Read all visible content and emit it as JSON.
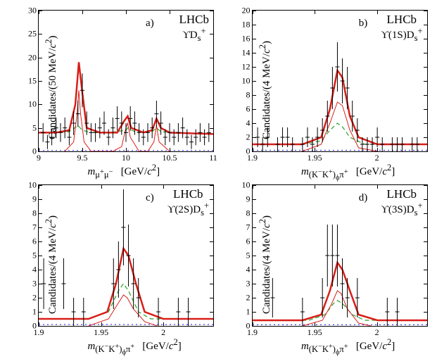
{
  "global": {
    "colors": {
      "axis": "#000000",
      "data_marker": "#000000",
      "fit_total": "#d91e18",
      "fit_signal": "#d91e18",
      "fit_combinatorial": "#2aa12a",
      "fit_combinatorial_dash": "6,4",
      "fit_bkg2": "#4040ff",
      "fit_bkg2_dash": "2,4"
    },
    "marker_size": 3,
    "marker_style": "cross",
    "fit_total_width": 2.5,
    "fit_signal_width": 1,
    "fit_dash_width": 1.2
  },
  "panels": {
    "a": {
      "tag": "a)",
      "experiment": "LHCb",
      "channel_html": "ϒD<sub>s</sub><sup>+</sup>",
      "xlabel_html": "<i>m</i><sub>μ<sup>+</sup>μ<sup>−</sup></sub> &nbsp; [GeV/<i>c</i><sup>2</sup>]",
      "ylabel_html": "Candidates/(50 MeV/<i>c</i><sup>2</sup>)",
      "xlim": [
        9,
        11
      ],
      "ylim": [
        0,
        30
      ],
      "xticks": [
        9,
        9.5,
        10,
        10.5,
        11
      ],
      "yticks": [
        0,
        5,
        10,
        15,
        20,
        25,
        30
      ],
      "data": {
        "x": [
          9.05,
          9.1,
          9.15,
          9.2,
          9.25,
          9.3,
          9.35,
          9.4,
          9.45,
          9.5,
          9.55,
          9.6,
          9.65,
          9.7,
          9.75,
          9.8,
          9.85,
          9.9,
          9.95,
          10.0,
          10.05,
          10.1,
          10.15,
          10.2,
          10.25,
          10.3,
          10.35,
          10.4,
          10.45,
          10.5,
          10.55,
          10.6,
          10.65,
          10.7,
          10.75,
          10.8,
          10.85,
          10.9,
          10.95
        ],
        "y": [
          4,
          2,
          3,
          5,
          4,
          5,
          3,
          6,
          8,
          13,
          6,
          4,
          4,
          5,
          6,
          3,
          5,
          7,
          6,
          4,
          7,
          6,
          4,
          3,
          4,
          5,
          8,
          6,
          3,
          4,
          3,
          4,
          5,
          3,
          2,
          3,
          4,
          3,
          4
        ],
        "ey": [
          2,
          1.5,
          1.7,
          2.2,
          2,
          2.2,
          1.7,
          2.5,
          2.8,
          3.6,
          2.5,
          2,
          2,
          2.2,
          2.5,
          1.7,
          2.2,
          2.6,
          2.5,
          2,
          2.6,
          2.5,
          2,
          1.7,
          2,
          2.2,
          2.8,
          2.5,
          1.7,
          2,
          1.7,
          2,
          2.2,
          1.7,
          1.5,
          1.7,
          2,
          1.7,
          2
        ]
      },
      "fit_total": {
        "x": [
          9,
          9.2,
          9.35,
          9.42,
          9.46,
          9.5,
          9.55,
          9.7,
          9.9,
          9.98,
          10.02,
          10.06,
          10.2,
          10.3,
          10.35,
          10.4,
          10.5,
          10.8,
          11
        ],
        "y": [
          4,
          4,
          4.5,
          10,
          19,
          12.5,
          5,
          4,
          4,
          6.5,
          7.5,
          5,
          4,
          4.5,
          7,
          5,
          4,
          3.8,
          3.7
        ]
      },
      "fit_signal": {
        "x": [
          9.3,
          9.4,
          9.44,
          9.46,
          9.48,
          9.52,
          9.6,
          9.85,
          9.95,
          10.0,
          10.02,
          10.05,
          10.15,
          10.25,
          10.32,
          10.35,
          10.38,
          10.5
        ],
        "y": [
          0,
          2,
          8,
          13,
          8,
          2,
          0,
          0,
          1,
          5,
          6,
          3,
          0,
          0,
          2,
          5.5,
          2,
          0
        ]
      },
      "fit_comb": {
        "x": [
          9,
          9.2,
          9.35,
          9.45,
          9.5,
          9.6,
          9.8,
          10,
          10.02,
          10.1,
          10.3,
          10.35,
          10.4,
          10.6,
          11
        ],
        "y": [
          4,
          4,
          4.2,
          5.5,
          4.5,
          4,
          4,
          4.5,
          5,
          4.2,
          4.2,
          5,
          4.2,
          3.9,
          3.7
        ]
      },
      "fit_bkg2": {
        "x": [
          9,
          11
        ],
        "y": [
          0.2,
          0.2
        ]
      }
    },
    "b": {
      "tag": "b)",
      "experiment": "LHCb",
      "channel_html": "ϒ(1S)D<sub>s</sub><sup>+</sup>",
      "xlabel_html": "<i>m</i><sub>(K<sup>−</sup>K<sup>+</sup>)<sub>ϕ</sub>π<sup>+</sup></sub> &nbsp; [GeV/<i>c</i><sup>2</sup>]",
      "ylabel_html": "Candidates/(4 MeV/<i>c</i><sup>2</sup>)",
      "xlim": [
        1.9,
        2.04
      ],
      "ylim": [
        0,
        20
      ],
      "xticks": [
        1.9,
        1.95,
        2
      ],
      "yticks": [
        0,
        2,
        4,
        6,
        8,
        10,
        12,
        14,
        16,
        18,
        20
      ],
      "data": {
        "x": [
          1.904,
          1.908,
          1.912,
          1.916,
          1.92,
          1.924,
          1.928,
          1.932,
          1.936,
          1.94,
          1.944,
          1.948,
          1.952,
          1.956,
          1.96,
          1.964,
          1.968,
          1.972,
          1.976,
          1.98,
          1.984,
          1.988,
          1.992,
          1.996,
          2.0,
          2.004,
          2.008,
          2.012,
          2.016,
          2.02,
          2.024,
          2.028,
          2.032
        ],
        "y": [
          2,
          1,
          2,
          0,
          1,
          2,
          2,
          1,
          0,
          1,
          2,
          1,
          2,
          3,
          5,
          9,
          12,
          10,
          9,
          5,
          3,
          1,
          1,
          1,
          2,
          1,
          0,
          1,
          1,
          1,
          0,
          1,
          1
        ],
        "ey": [
          1.4,
          1,
          1.4,
          0,
          1,
          1.4,
          1.4,
          1,
          0,
          1,
          1.4,
          1,
          1.4,
          1.7,
          2.2,
          3,
          3.5,
          3.2,
          3,
          2.2,
          1.7,
          1,
          1,
          1,
          1.4,
          1,
          0,
          1,
          1,
          1,
          0,
          1,
          1
        ]
      },
      "fit_total": {
        "x": [
          1.9,
          1.94,
          1.955,
          1.962,
          1.968,
          1.972,
          1.978,
          1.985,
          2.0,
          2.04
        ],
        "y": [
          1,
          1,
          2,
          6,
          11.5,
          10.5,
          5,
          2,
          1,
          1
        ]
      },
      "fit_signal": {
        "x": [
          1.94,
          1.955,
          1.962,
          1.968,
          1.972,
          1.978,
          1.985,
          2.0
        ],
        "y": [
          0,
          1,
          4,
          7,
          6.5,
          3,
          0.5,
          0
        ]
      },
      "fit_comb": {
        "x": [
          1.9,
          1.94,
          1.955,
          1.962,
          1.968,
          1.972,
          1.978,
          1.99,
          2.04
        ],
        "y": [
          1,
          1,
          1.5,
          3,
          4,
          3.5,
          2,
          1,
          1
        ]
      },
      "fit_bkg2": {
        "x": [
          1.9,
          2.04
        ],
        "y": [
          0.15,
          0.15
        ]
      }
    },
    "c": {
      "tag": "c)",
      "experiment": "LHCb",
      "channel_html": "ϒ(2S)D<sub>s</sub><sup>+</sup>",
      "xlabel_html": "<i>m</i><sub>(K<sup>−</sup>K<sup>+</sup>)<sub>ϕ</sub>π<sup>+</sup></sub> &nbsp; [GeV/<i>c</i><sup>2</sup>]",
      "ylabel_html": "Candidates/(4 MeV/<i>c</i><sup>2</sup>)",
      "xlim": [
        1.9,
        2.04
      ],
      "ylim": [
        0,
        10
      ],
      "xticks": [
        1.9,
        1.95,
        2
      ],
      "yticks": [
        0,
        1,
        2,
        3,
        4,
        5,
        6,
        7,
        8,
        9,
        10
      ],
      "data": {
        "x": [
          1.904,
          1.912,
          1.92,
          1.928,
          1.936,
          1.944,
          1.952,
          1.96,
          1.964,
          1.968,
          1.972,
          1.976,
          1.98,
          1.988,
          1.996,
          2.004,
          2.012,
          2.02,
          2.028
        ],
        "y": [
          3,
          0,
          3,
          1,
          1,
          0,
          0,
          3,
          4,
          7,
          5,
          3,
          2,
          0,
          1,
          0,
          1,
          1,
          0
        ],
        "ey": [
          1.8,
          0,
          1.8,
          1,
          1,
          0,
          0,
          1.8,
          2,
          2.7,
          2.2,
          1.8,
          1.4,
          0,
          1,
          0,
          1,
          1,
          0
        ]
      },
      "fit_total": {
        "x": [
          1.9,
          1.94,
          1.955,
          1.962,
          1.968,
          1.972,
          1.978,
          1.985,
          2.0,
          2.04
        ],
        "y": [
          0.5,
          0.5,
          1,
          3,
          5.5,
          5,
          3,
          1,
          0.5,
          0.5
        ]
      },
      "fit_signal": {
        "x": [
          1.94,
          1.956,
          1.963,
          1.968,
          1.971,
          1.976,
          1.985,
          1.995
        ],
        "y": [
          0,
          0.5,
          1.5,
          2.2,
          2,
          1.2,
          0.3,
          0
        ]
      },
      "fit_comb": {
        "x": [
          1.9,
          1.94,
          1.956,
          1.964,
          1.968,
          1.972,
          1.98,
          1.99,
          2.04
        ],
        "y": [
          0.5,
          0.5,
          1,
          2.5,
          3,
          2.5,
          1,
          0.5,
          0.5
        ]
      },
      "fit_bkg2": {
        "x": [
          1.9,
          2.04
        ],
        "y": [
          0.1,
          0.1
        ]
      }
    },
    "d": {
      "tag": "d)",
      "experiment": "LHCb",
      "channel_html": "ϒ(3S)D<sub>s</sub><sup>+</sup>",
      "xlabel_html": "<i>m</i><sub>(K<sup>−</sup>K<sup>+</sup>)<sub>ϕ</sub>π<sup>+</sup></sub> &nbsp; [GeV/<i>c</i><sup>2</sup>]",
      "ylabel_html": "Candidates/(4 MeV/<i>c</i><sup>2</sup>)",
      "xlim": [
        1.9,
        2.04
      ],
      "ylim": [
        0,
        10
      ],
      "xticks": [
        1.9,
        1.95,
        2
      ],
      "yticks": [
        0,
        1,
        2,
        3,
        4,
        5,
        6,
        7,
        8,
        9,
        10
      ],
      "data": {
        "x": [
          1.908,
          1.916,
          1.924,
          1.932,
          1.94,
          1.948,
          1.956,
          1.96,
          1.964,
          1.968,
          1.972,
          1.976,
          1.984,
          1.992,
          2.0,
          2.008,
          2.016,
          2.024,
          2.032
        ],
        "y": [
          0,
          2,
          0,
          0,
          1,
          0,
          2,
          5,
          5,
          5,
          3,
          2,
          2,
          0,
          0,
          1,
          1,
          0,
          0
        ],
        "ey": [
          0,
          1.4,
          0,
          0,
          1,
          0,
          1.4,
          2.2,
          2.2,
          2.2,
          1.8,
          1.4,
          1.4,
          0,
          0,
          1,
          1,
          0,
          0
        ]
      },
      "fit_total": {
        "x": [
          1.9,
          1.94,
          1.955,
          1.962,
          1.968,
          1.972,
          1.978,
          1.985,
          2.0,
          2.04
        ],
        "y": [
          0.4,
          0.4,
          0.8,
          2.5,
          4.5,
          4,
          2.5,
          0.8,
          0.4,
          0.4
        ]
      },
      "fit_signal": {
        "x": [
          1.94,
          1.956,
          1.963,
          1.968,
          1.971,
          1.976,
          1.985,
          1.995
        ],
        "y": [
          0,
          0.4,
          1.5,
          2.5,
          2.3,
          1.2,
          0.2,
          0
        ]
      },
      "fit_comb": {
        "x": [
          1.9,
          1.945,
          1.958,
          1.965,
          1.968,
          1.972,
          1.98,
          1.99,
          2.04
        ],
        "y": [
          0.4,
          0.4,
          0.8,
          1.6,
          1.8,
          1.6,
          0.8,
          0.4,
          0.4
        ]
      },
      "fit_bkg2": {
        "x": [
          1.9,
          2.04
        ],
        "y": [
          0.08,
          0.08
        ]
      }
    }
  }
}
